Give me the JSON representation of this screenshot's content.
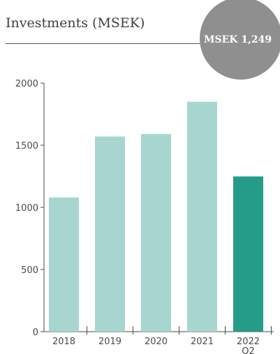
{
  "header": {
    "title": "Investments (MSEK)",
    "badge": "MSEK 1,249"
  },
  "chart_data": {
    "type": "bar",
    "title": "Investments (MSEK)",
    "categories": [
      "2018",
      "2019",
      "2020",
      "2021",
      "2022\nQ2"
    ],
    "values": [
      1080,
      1570,
      1590,
      1850,
      1249
    ],
    "ylim": [
      0,
      2000
    ],
    "yticks": [
      0,
      500,
      1000,
      1500,
      2000
    ],
    "colors": {
      "default": "#a7d6d1",
      "highlight": "#259c8a",
      "axis": "#4a4a4a"
    },
    "highlight_index": 4,
    "grid": false,
    "legend": "none"
  }
}
